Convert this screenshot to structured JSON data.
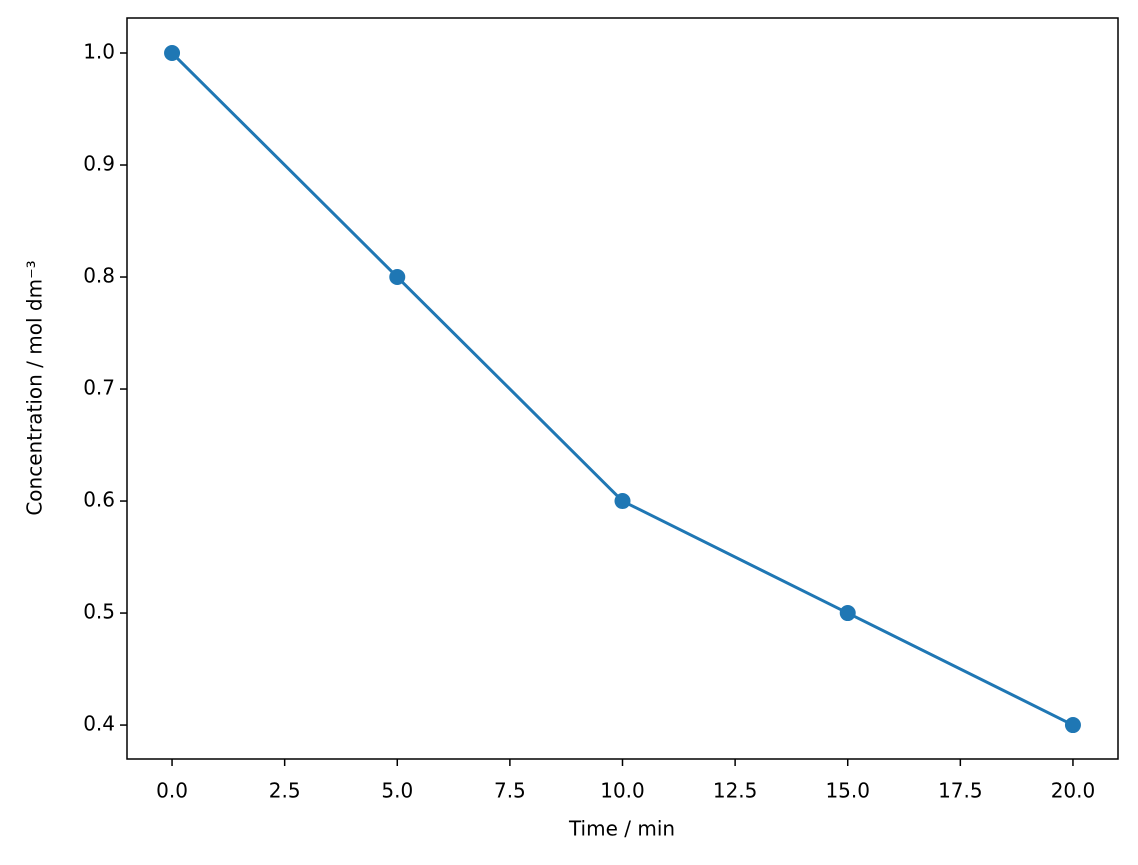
{
  "chart_data": {
    "type": "line",
    "xlabel": "Time / min",
    "ylabel": "Concentration / mol dm⁻³",
    "x": [
      0,
      5,
      10,
      15,
      20
    ],
    "values": [
      1.0,
      0.8,
      0.6,
      0.5,
      0.4
    ],
    "color": "#1f77b4",
    "markers": true,
    "xlim": [
      -1,
      21
    ],
    "ylim": [
      0.3697,
      1.03125
    ],
    "xticks": [
      {
        "value": 0,
        "label": "0.0"
      },
      2.5,
      {
        "value": 5,
        "label": "5.0"
      },
      7.5,
      {
        "value": 10,
        "label": "10.0"
      },
      12.5,
      {
        "value": 15,
        "label": "15.0"
      },
      17.5,
      {
        "value": 20,
        "label": "20.0"
      }
    ],
    "yticks": [
      0.4,
      0.5,
      0.6,
      0.7,
      0.8,
      0.9,
      {
        "value": 1.0,
        "label": "1.0"
      }
    ],
    "grid": false
  }
}
